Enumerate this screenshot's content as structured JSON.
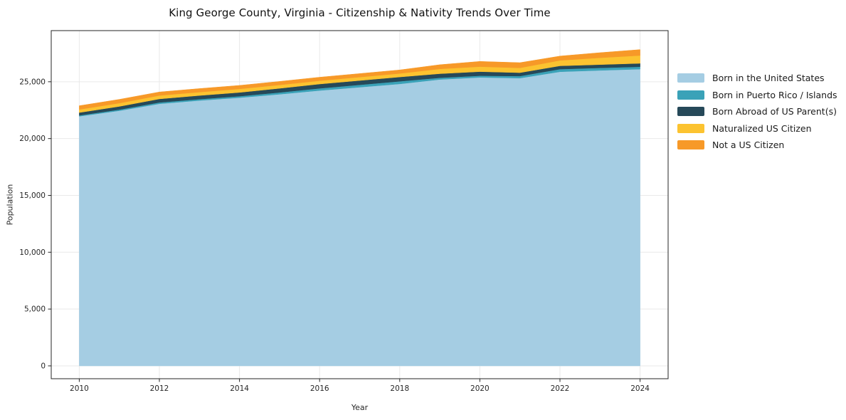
{
  "chart_data": {
    "type": "area",
    "stacked": true,
    "title": "King George County, Virginia - Citizenship & Nativity Trends Over Time",
    "xlabel": "Year",
    "ylabel": "Population",
    "x": [
      2010,
      2011,
      2012,
      2013,
      2014,
      2015,
      2016,
      2017,
      2018,
      2019,
      2020,
      2021,
      2022,
      2023,
      2024
    ],
    "series": [
      {
        "name": "Born in the United States",
        "color": "#a5cde3",
        "values": [
          21960,
          22450,
          23060,
          23350,
          23600,
          23900,
          24230,
          24520,
          24810,
          25200,
          25380,
          25320,
          25880,
          26000,
          26110
        ]
      },
      {
        "name": "Born in Puerto Rico / Islands",
        "color": "#3aa2b8",
        "values": [
          80,
          100,
          120,
          120,
          130,
          160,
          190,
          210,
          230,
          150,
          150,
          180,
          230,
          220,
          210
        ]
      },
      {
        "name": "Born Abroad of US Parent(s)",
        "color": "#264959",
        "values": [
          250,
          280,
          310,
          320,
          330,
          360,
          380,
          380,
          380,
          360,
          360,
          300,
          290,
          290,
          300
        ]
      },
      {
        "name": "Naturalized US Citizen",
        "color": "#fcc330",
        "values": [
          270,
          290,
          300,
          300,
          310,
          300,
          290,
          300,
          310,
          420,
          440,
          420,
          480,
          600,
          690
        ]
      },
      {
        "name": "Not a US Citizen",
        "color": "#f79928",
        "values": [
          330,
          330,
          310,
          310,
          310,
          310,
          310,
          310,
          310,
          370,
          460,
          460,
          380,
          450,
          520
        ]
      }
    ],
    "xticks": [
      2010,
      2012,
      2014,
      2016,
      2018,
      2020,
      2022,
      2024
    ],
    "yticks": [
      0,
      5000,
      10000,
      15000,
      20000,
      25000
    ],
    "ytick_labels": [
      "0",
      "5,000",
      "10,000",
      "15,000",
      "20,000",
      "25,000"
    ],
    "xlim": [
      2009.3,
      2024.7
    ],
    "ylim": [
      -1130,
      29500
    ],
    "grid": true,
    "legend_position": "right"
  },
  "colors": {
    "grid": "#e9e9e9",
    "frame": "#262626",
    "tick_text": "#262626",
    "background": "#ffffff"
  }
}
